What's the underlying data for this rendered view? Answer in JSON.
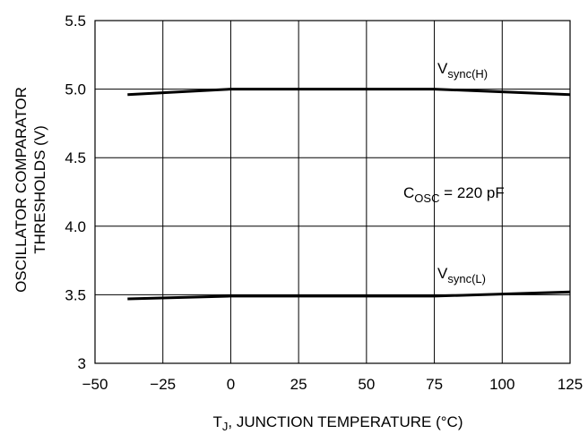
{
  "chart_data": {
    "type": "line",
    "title": "",
    "xlabel": {
      "main": "T",
      "sub": "J",
      "rest": ", JUNCTION TEMPERATURE (°C)"
    },
    "ylabel_line1": "OSCILLATOR COMPARATOR",
    "ylabel_line2": "THRESHOLDS (V)",
    "xlim": [
      -50,
      125
    ],
    "ylim": [
      3.0,
      5.5
    ],
    "xticks": [
      -50,
      -25,
      0,
      25,
      50,
      75,
      100,
      125
    ],
    "xtick_labels": [
      "−50",
      "−25",
      "0",
      "25",
      "50",
      "75",
      "100",
      "125"
    ],
    "yticks": [
      3.0,
      3.5,
      4.0,
      4.5,
      5.0,
      5.5
    ],
    "ytick_labels": [
      "3",
      "3.5",
      "4.0",
      "4.5",
      "5.0",
      "5.5"
    ],
    "grid": true,
    "series": [
      {
        "name": {
          "main": "V",
          "sub": "sync(H)"
        },
        "x": [
          -38,
          0,
          75,
          125
        ],
        "y": [
          4.96,
          5.0,
          5.0,
          4.96
        ],
        "color": "#000000"
      },
      {
        "name": {
          "main": "V",
          "sub": "sync(L)"
        },
        "x": [
          -38,
          0,
          75,
          125
        ],
        "y": [
          3.47,
          3.49,
          3.49,
          3.52
        ],
        "color": "#000000"
      }
    ],
    "annotations": [
      {
        "main": "C",
        "sub": "OSC",
        "rest": " = 220 pF"
      }
    ]
  }
}
